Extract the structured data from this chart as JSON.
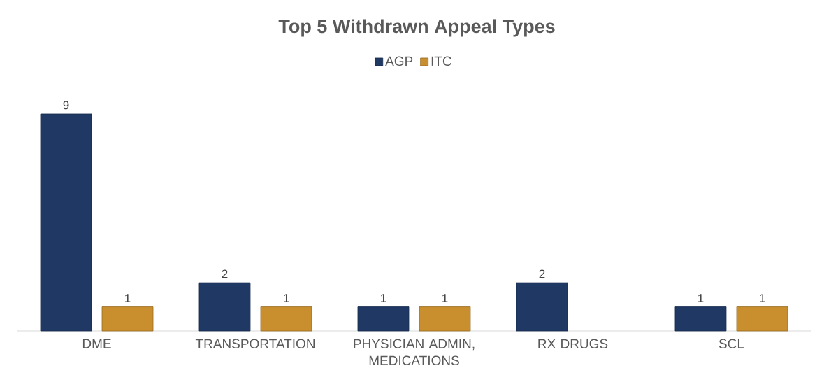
{
  "chart_data": {
    "type": "bar",
    "title": "Top 5 Withdrawn Appeal Types",
    "categories": [
      "DME",
      "TRANSPORTATION",
      "PHYSICIAN ADMIN, MEDICATIONS",
      "RX DRUGS",
      "SCL"
    ],
    "series": [
      {
        "name": "AGP",
        "color": "#1f3864",
        "values": [
          9,
          2,
          1,
          2,
          1
        ]
      },
      {
        "name": "ITC",
        "color": "#c98f2e",
        "values": [
          1,
          1,
          1,
          null,
          1
        ]
      }
    ],
    "data_labels": true,
    "legend": "top",
    "tick_labels": "x"
  }
}
